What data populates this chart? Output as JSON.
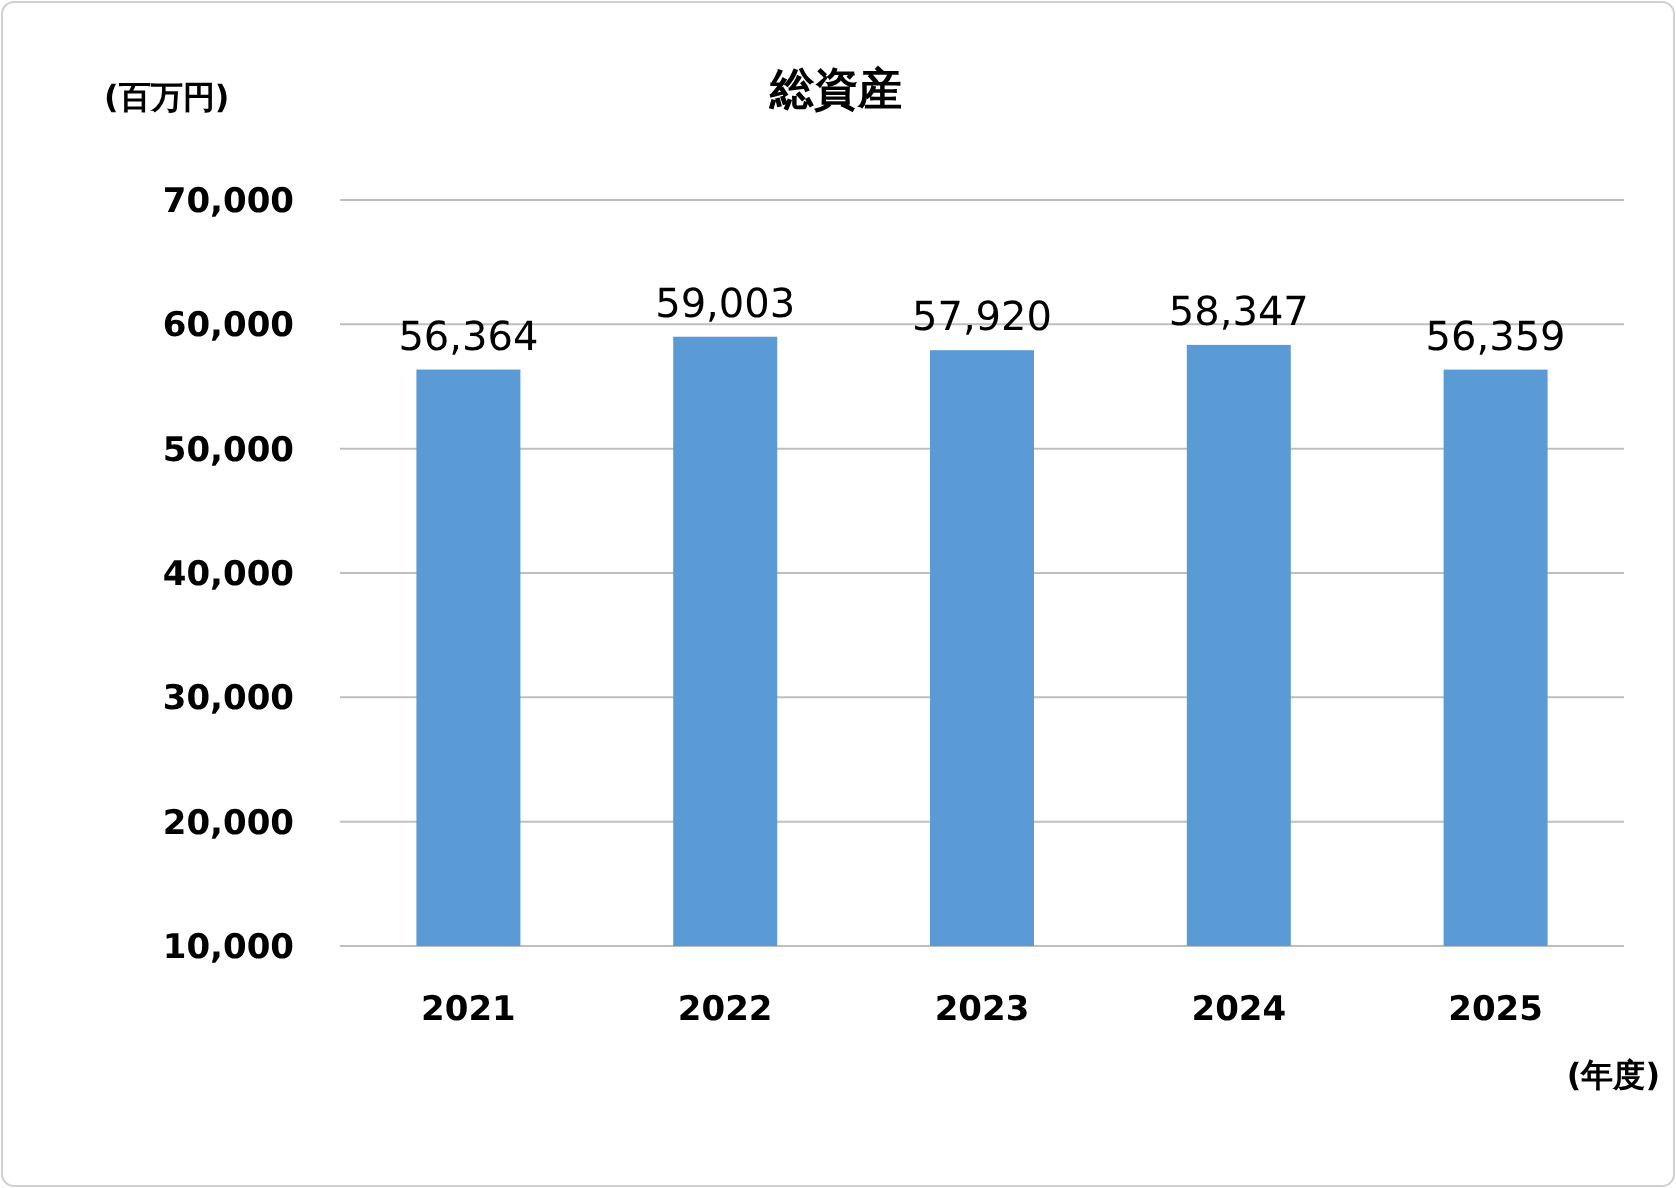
{
  "chart_data": {
    "type": "bar",
    "title": "総資産",
    "ylabel": "(百万円)",
    "xlabel": "(年度)",
    "categories": [
      "2021",
      "2022",
      "2023",
      "2024",
      "2025"
    ],
    "values": [
      56364,
      59003,
      57920,
      58347,
      56359
    ],
    "color": "#5b9bd5",
    "ylim": [
      10000,
      70000
    ],
    "yticks": [
      {
        "value": 10000,
        "label": "10,000"
      },
      {
        "value": 20000,
        "label": "20,000"
      },
      {
        "value": 30000,
        "label": "30,000"
      },
      {
        "value": 40000,
        "label": "40,000"
      },
      {
        "value": 50000,
        "label": "50,000"
      },
      {
        "value": 60000,
        "label": "60,000"
      },
      {
        "value": 70000,
        "label": "70,000"
      }
    ],
    "grid": true,
    "value_labels": [
      "56,364",
      "59,003",
      "57,920",
      "58,347",
      "56,359"
    ]
  }
}
